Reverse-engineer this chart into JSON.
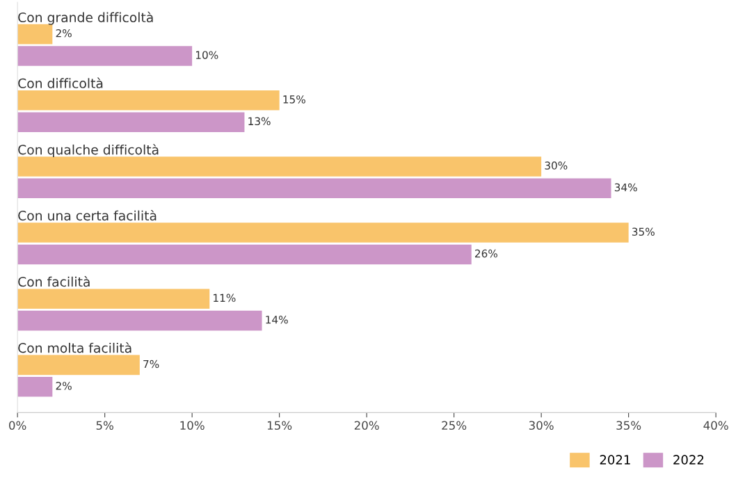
{
  "chart_data": {
    "type": "bar",
    "orientation": "horizontal",
    "categories": [
      "Con grande difficoltà",
      "Con difficoltà",
      "Con qualche difficoltà",
      "Con una certa facilità",
      "Con facilità",
      "Con molta facilità"
    ],
    "series": [
      {
        "name": "2021",
        "color": "#f9c46b",
        "values": [
          2,
          15,
          30,
          35,
          11,
          7
        ],
        "value_labels": [
          "2%",
          "15%",
          "30%",
          "35%",
          "11%",
          "7%"
        ]
      },
      {
        "name": "2022",
        "color": "#cc96c8",
        "values": [
          10,
          13,
          34,
          26,
          14,
          2
        ],
        "value_labels": [
          "10%",
          "13%",
          "34%",
          "26%",
          "14%",
          "2%"
        ]
      }
    ],
    "xlim": [
      0,
      40
    ],
    "xticks": [
      {
        "value": 0,
        "label": "0%"
      },
      {
        "value": 5,
        "label": "5%"
      },
      {
        "value": 10,
        "label": "10%"
      },
      {
        "value": 15,
        "label": "15%"
      },
      {
        "value": 20,
        "label": "20%"
      },
      {
        "value": 25,
        "label": "25%"
      },
      {
        "value": 30,
        "label": "30%"
      },
      {
        "value": 35,
        "label": "35%"
      },
      {
        "value": 40,
        "label": "40%"
      }
    ],
    "grid": false,
    "legend": "bottom right"
  }
}
